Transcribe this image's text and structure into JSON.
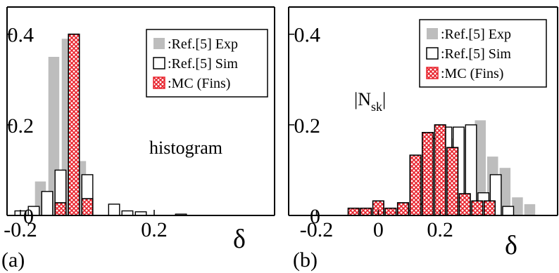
{
  "colors": {
    "exp": "#bdbdbd",
    "sim_fill": "#ffffff",
    "sim_stroke": "#000000",
    "mc": "#e8202a",
    "axis": "#000000"
  },
  "chart_data": [
    {
      "type": "bar",
      "panel_label": "(a)",
      "xlabel": "δ",
      "ylabel": "",
      "annotation": "histogram",
      "xlim": [
        -0.24,
        0.56
      ],
      "ylim": [
        0,
        0.46
      ],
      "x_ticks": [
        {
          "value": -0.2,
          "label": "-0.2"
        },
        {
          "value": 0.2,
          "label": "0.2"
        }
      ],
      "y_ticks": [
        {
          "value": 0,
          "label": "0"
        },
        {
          "value": 0.2,
          "label": "0.2"
        },
        {
          "value": 0.4,
          "label": "0.4"
        }
      ],
      "legend_position": "top-right",
      "series": [
        {
          "name": ":Ref.[5] Exp",
          "style": "exp",
          "x": [
            -0.14,
            -0.1,
            -0.06,
            -0.02
          ],
          "values": [
            0.075,
            0.35,
            0.39,
            0.12
          ]
        },
        {
          "name": ":Ref.[5] Sim",
          "style": "sim",
          "x": [
            -0.24,
            -0.2,
            -0.16,
            -0.12,
            -0.08,
            -0.04,
            0.0,
            0.04,
            0.08,
            0.12,
            0.16,
            0.2,
            0.24,
            0.28,
            0.32,
            0.36,
            0.4
          ],
          "values": [
            0.0,
            0.01,
            0.02,
            0.053,
            0.1,
            0.4,
            0.09,
            0.0,
            0.025,
            0.01,
            0.008,
            0.0,
            0.0,
            0.003,
            0.0,
            0.0,
            0.0
          ]
        },
        {
          "name": ":MC (Fins)",
          "style": "mc",
          "x": [
            -0.08,
            -0.04,
            0.0
          ],
          "values": [
            0.028,
            0.4,
            0.037
          ]
        }
      ]
    },
    {
      "type": "bar",
      "panel_label": "(b)",
      "xlabel": "δ",
      "ylabel": "",
      "annotation": "|N",
      "annotation_sub": "sk",
      "annotation_end": "|",
      "xlim": [
        -0.29,
        0.58
      ],
      "ylim": [
        0,
        0.46
      ],
      "x_ticks": [
        {
          "value": -0.2,
          "label": "-0.2"
        },
        {
          "value": 0.0,
          "label": "0"
        },
        {
          "value": 0.2,
          "label": "0.2"
        }
      ],
      "y_ticks": [
        {
          "value": 0,
          "label": "0"
        },
        {
          "value": 0.2,
          "label": "0.2"
        },
        {
          "value": 0.4,
          "label": "0.4"
        }
      ],
      "legend_position": "top-right",
      "series": [
        {
          "name": ":Ref.[5] Exp",
          "style": "exp",
          "x": [
            0.09,
            0.13,
            0.17,
            0.21,
            0.25,
            0.29,
            0.33,
            0.37,
            0.41,
            0.45,
            0.49
          ],
          "values": [
            0.015,
            0.03,
            0.09,
            0.15,
            0.17,
            0.19,
            0.21,
            0.13,
            0.105,
            0.04,
            0.025
          ]
        },
        {
          "name": ":Ref.[5] Sim",
          "style": "sim",
          "x": [
            0.1,
            0.14,
            0.18,
            0.22,
            0.26,
            0.3,
            0.34,
            0.38,
            0.42
          ],
          "values": [
            0.01,
            0.025,
            0.17,
            0.195,
            0.195,
            0.2,
            0.05,
            0.09,
            0.02
          ]
        },
        {
          "name": ":MC (Fins)",
          "style": "mc",
          "x": [
            -0.08,
            -0.04,
            0.0,
            0.04,
            0.08,
            0.12,
            0.16,
            0.2,
            0.24,
            0.28,
            0.32,
            0.36
          ],
          "values": [
            0.016,
            0.016,
            0.032,
            0.016,
            0.028,
            0.133,
            0.183,
            0.2,
            0.15,
            0.048,
            0.032,
            0.032
          ]
        }
      ]
    }
  ]
}
